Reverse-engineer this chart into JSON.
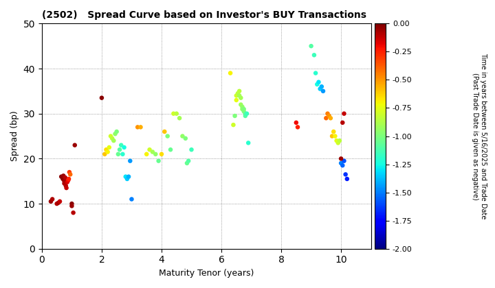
{
  "title": "(2502)   Spread Curve based on Investor's BUY Transactions",
  "xlabel": "Maturity Tenor (years)",
  "ylabel": "Spread (bp)",
  "colorbar_label": "Time in years between 5/16/2025 and Trade Date\n(Past Trade Date is given as negative)",
  "xlim": [
    0,
    11
  ],
  "ylim": [
    0,
    50
  ],
  "xticks": [
    0,
    2,
    4,
    6,
    8,
    10
  ],
  "yticks": [
    0,
    10,
    20,
    30,
    40,
    50
  ],
  "cmap": "jet",
  "vmin": -2.0,
  "vmax": 0.0,
  "colorbar_ticks": [
    0.0,
    -0.25,
    -0.5,
    -0.75,
    -1.0,
    -1.25,
    -1.5,
    -1.75,
    -2.0
  ],
  "figsize": [
    7.2,
    4.2
  ],
  "dpi": 100,
  "marker_size": 22,
  "points": [
    [
      0.3,
      10.5,
      -0.05
    ],
    [
      0.35,
      11.0,
      -0.08
    ],
    [
      0.5,
      10.0,
      -0.1
    ],
    [
      0.55,
      10.2,
      -0.07
    ],
    [
      0.6,
      10.5,
      -0.12
    ],
    [
      0.65,
      16.0,
      -0.02
    ],
    [
      0.7,
      15.5,
      -0.03
    ],
    [
      0.72,
      16.2,
      -0.05
    ],
    [
      0.75,
      15.0,
      -0.06
    ],
    [
      0.75,
      14.5,
      -0.08
    ],
    [
      0.78,
      15.8,
      -0.1
    ],
    [
      0.8,
      14.0,
      -0.1
    ],
    [
      0.82,
      13.5,
      -0.12
    ],
    [
      0.85,
      14.8,
      -0.15
    ],
    [
      0.88,
      15.2,
      -0.2
    ],
    [
      0.9,
      15.5,
      -0.25
    ],
    [
      0.92,
      17.0,
      -0.3
    ],
    [
      0.95,
      16.5,
      -0.4
    ],
    [
      1.0,
      10.0,
      -0.02
    ],
    [
      1.0,
      9.5,
      -0.05
    ],
    [
      1.05,
      8.0,
      -0.1
    ],
    [
      1.1,
      23.0,
      -0.05
    ],
    [
      2.0,
      33.5,
      -0.02
    ],
    [
      2.1,
      21.0,
      -0.6
    ],
    [
      2.15,
      22.0,
      -0.65
    ],
    [
      2.2,
      21.5,
      -0.7
    ],
    [
      2.25,
      22.5,
      -0.75
    ],
    [
      2.3,
      25.0,
      -0.8
    ],
    [
      2.35,
      24.5,
      -0.85
    ],
    [
      2.4,
      24.0,
      -0.9
    ],
    [
      2.45,
      25.5,
      -0.95
    ],
    [
      2.5,
      26.0,
      -1.0
    ],
    [
      2.55,
      21.0,
      -1.05
    ],
    [
      2.6,
      22.0,
      -1.1
    ],
    [
      2.65,
      23.0,
      -1.15
    ],
    [
      2.7,
      21.0,
      -1.2
    ],
    [
      2.75,
      22.5,
      -1.25
    ],
    [
      2.8,
      16.0,
      -1.3
    ],
    [
      2.85,
      15.5,
      -1.35
    ],
    [
      2.9,
      16.0,
      -1.4
    ],
    [
      2.95,
      19.5,
      -1.45
    ],
    [
      3.0,
      11.0,
      -1.5
    ],
    [
      3.2,
      27.0,
      -0.5
    ],
    [
      3.3,
      27.0,
      -0.55
    ],
    [
      3.5,
      21.0,
      -0.7
    ],
    [
      3.6,
      22.0,
      -0.8
    ],
    [
      3.7,
      21.5,
      -0.9
    ],
    [
      3.8,
      21.0,
      -0.95
    ],
    [
      3.9,
      19.5,
      -1.05
    ],
    [
      4.0,
      21.0,
      -0.65
    ],
    [
      4.1,
      26.0,
      -0.6
    ],
    [
      4.2,
      25.0,
      -1.0
    ],
    [
      4.3,
      22.0,
      -1.05
    ],
    [
      4.4,
      30.0,
      -0.8
    ],
    [
      4.5,
      30.0,
      -0.85
    ],
    [
      4.6,
      29.0,
      -0.9
    ],
    [
      4.7,
      25.0,
      -0.95
    ],
    [
      4.8,
      24.5,
      -1.0
    ],
    [
      4.85,
      19.0,
      -1.05
    ],
    [
      4.9,
      19.5,
      -1.1
    ],
    [
      5.0,
      22.0,
      -1.15
    ],
    [
      6.3,
      39.0,
      -0.7
    ],
    [
      6.4,
      27.5,
      -0.8
    ],
    [
      6.45,
      29.5,
      -1.0
    ],
    [
      6.5,
      33.0,
      -0.75
    ],
    [
      6.5,
      34.0,
      -0.8
    ],
    [
      6.55,
      34.5,
      -0.85
    ],
    [
      6.6,
      35.0,
      -0.85
    ],
    [
      6.6,
      34.0,
      -0.9
    ],
    [
      6.65,
      33.5,
      -0.9
    ],
    [
      6.65,
      32.0,
      -0.92
    ],
    [
      6.7,
      31.5,
      -0.95
    ],
    [
      6.7,
      31.0,
      -0.96
    ],
    [
      6.75,
      31.0,
      -1.0
    ],
    [
      6.75,
      30.5,
      -1.0
    ],
    [
      6.8,
      30.0,
      -1.05
    ],
    [
      6.8,
      29.5,
      -1.1
    ],
    [
      6.85,
      30.0,
      -1.15
    ],
    [
      6.9,
      23.5,
      -1.2
    ],
    [
      8.5,
      28.0,
      -0.2
    ],
    [
      8.55,
      27.0,
      -0.25
    ],
    [
      9.0,
      45.0,
      -1.1
    ],
    [
      9.1,
      43.0,
      -1.15
    ],
    [
      9.15,
      39.0,
      -1.2
    ],
    [
      9.2,
      36.5,
      -1.25
    ],
    [
      9.25,
      37.0,
      -1.3
    ],
    [
      9.3,
      35.5,
      -1.35
    ],
    [
      9.35,
      36.0,
      -1.4
    ],
    [
      9.4,
      35.0,
      -1.45
    ],
    [
      9.5,
      29.0,
      -0.4
    ],
    [
      9.55,
      30.0,
      -0.45
    ],
    [
      9.6,
      29.5,
      -0.5
    ],
    [
      9.65,
      29.0,
      -0.55
    ],
    [
      9.7,
      25.0,
      -0.6
    ],
    [
      9.75,
      26.0,
      -0.65
    ],
    [
      9.8,
      25.0,
      -0.7
    ],
    [
      9.85,
      24.0,
      -0.75
    ],
    [
      9.9,
      23.5,
      -0.8
    ],
    [
      9.95,
      24.0,
      -0.85
    ],
    [
      10.0,
      19.0,
      -1.5
    ],
    [
      10.05,
      18.5,
      -1.55
    ],
    [
      10.1,
      19.5,
      -1.6
    ],
    [
      10.15,
      16.5,
      -1.65
    ],
    [
      10.2,
      15.5,
      -1.7
    ],
    [
      10.0,
      20.0,
      -0.05
    ],
    [
      10.05,
      28.0,
      -0.1
    ],
    [
      10.1,
      30.0,
      -0.12
    ]
  ]
}
